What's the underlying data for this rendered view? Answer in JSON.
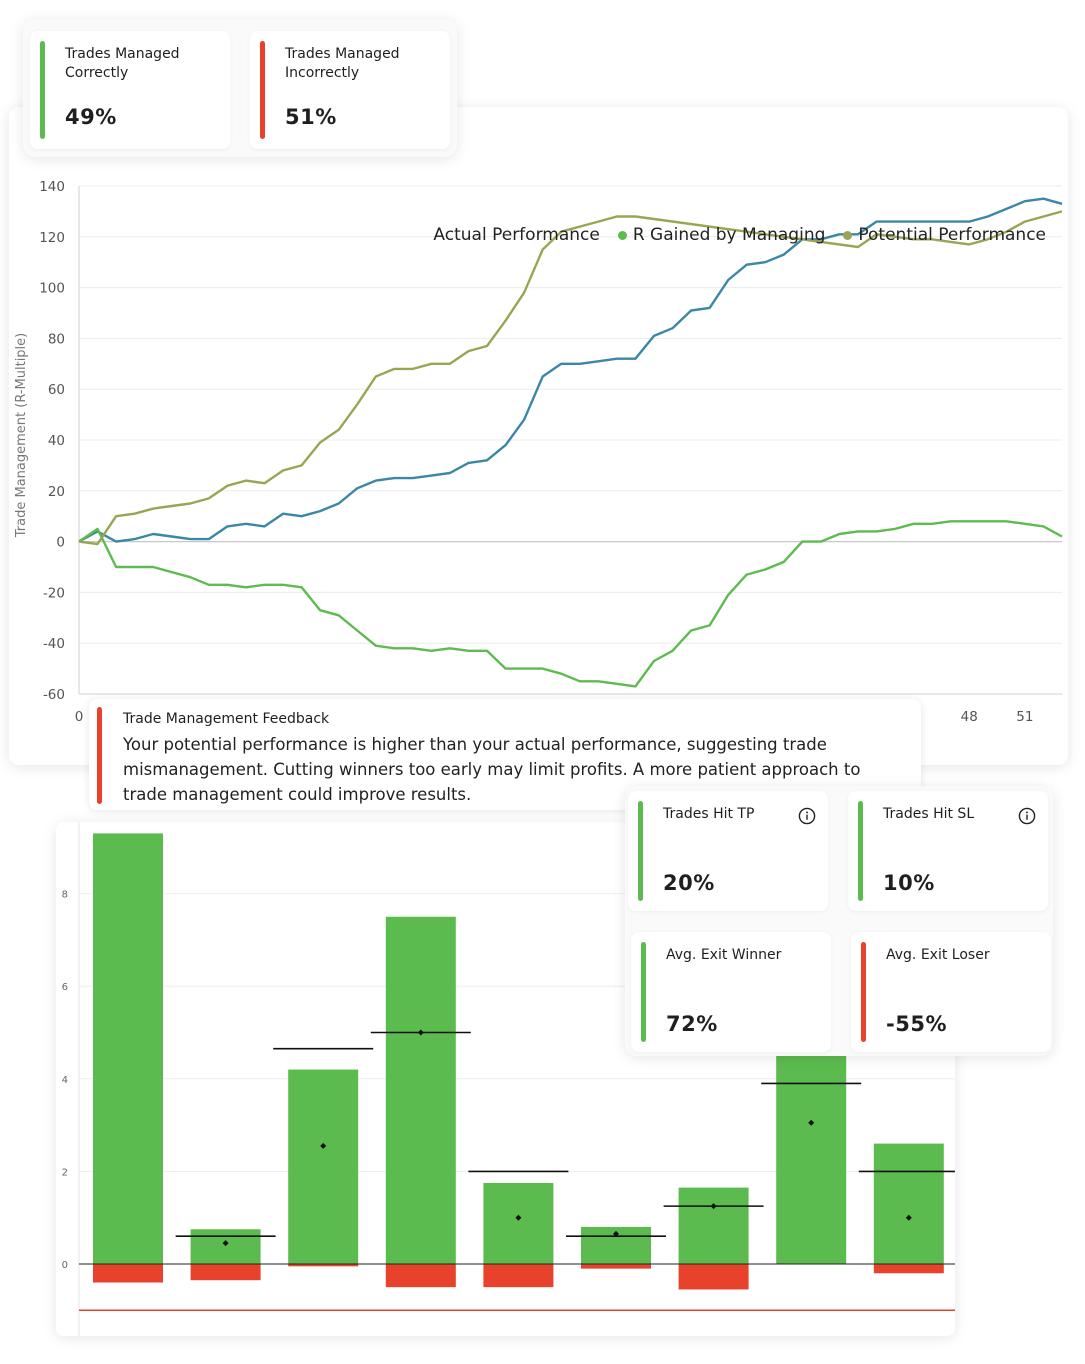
{
  "top_stats": [
    {
      "label": "Trades Managed Correctly",
      "value": "49%",
      "color": "#5cbb4e"
    },
    {
      "label": "Trades Managed Incorrectly",
      "value": "51%",
      "color": "#e8412c"
    }
  ],
  "legend": [
    {
      "label": "Actual Performance",
      "color": "#3b87a6"
    },
    {
      "label": "R Gained by Managing",
      "color": "#5dbb4f"
    },
    {
      "label": "Potential Performance",
      "color": "#9aa553"
    }
  ],
  "chart_data": [
    {
      "type": "line",
      "ylabel": "Trade Management (R-Multiple)",
      "ylim": [
        -60,
        140
      ],
      "yticks": [
        -60,
        -40,
        -20,
        0,
        20,
        40,
        60,
        80,
        100,
        120,
        140
      ],
      "xlim": [
        0,
        53
      ],
      "xtick_labels": [
        "0",
        "48",
        "51"
      ],
      "grid": true,
      "legend_position": "top-right",
      "series": [
        {
          "name": "Actual Performance",
          "color": "#3b87a6",
          "points": [
            [
              0,
              0
            ],
            [
              1,
              4
            ],
            [
              2,
              0
            ],
            [
              3,
              1
            ],
            [
              4,
              3
            ],
            [
              5,
              2
            ],
            [
              6,
              1
            ],
            [
              7,
              1
            ],
            [
              8,
              6
            ],
            [
              9,
              7
            ],
            [
              10,
              6
            ],
            [
              11,
              11
            ],
            [
              12,
              10
            ],
            [
              13,
              12
            ],
            [
              14,
              15
            ],
            [
              15,
              21
            ],
            [
              16,
              24
            ],
            [
              17,
              25
            ],
            [
              18,
              25
            ],
            [
              19,
              26
            ],
            [
              20,
              27
            ],
            [
              21,
              31
            ],
            [
              22,
              32
            ],
            [
              23,
              38
            ],
            [
              24,
              48
            ],
            [
              25,
              65
            ],
            [
              26,
              70
            ],
            [
              27,
              70
            ],
            [
              28,
              71
            ],
            [
              29,
              72
            ],
            [
              30,
              72
            ],
            [
              31,
              81
            ],
            [
              32,
              84
            ],
            [
              33,
              91
            ],
            [
              34,
              92
            ],
            [
              35,
              103
            ],
            [
              36,
              109
            ],
            [
              37,
              110
            ],
            [
              38,
              113
            ],
            [
              39,
              119
            ],
            [
              40,
              119
            ],
            [
              41,
              121
            ],
            [
              42,
              121
            ],
            [
              43,
              126
            ],
            [
              44,
              126
            ],
            [
              45,
              126
            ],
            [
              46,
              126
            ],
            [
              47,
              126
            ],
            [
              48,
              126
            ],
            [
              49,
              128
            ],
            [
              50,
              131
            ],
            [
              51,
              134
            ],
            [
              52,
              135
            ],
            [
              53,
              133
            ]
          ]
        },
        {
          "name": "R Gained by Managing",
          "color": "#5dbb4f",
          "points": [
            [
              0,
              0
            ],
            [
              1,
              5
            ],
            [
              2,
              -10
            ],
            [
              3,
              -10
            ],
            [
              4,
              -10
            ],
            [
              5,
              -12
            ],
            [
              6,
              -14
            ],
            [
              7,
              -17
            ],
            [
              8,
              -17
            ],
            [
              9,
              -18
            ],
            [
              10,
              -17
            ],
            [
              11,
              -17
            ],
            [
              12,
              -18
            ],
            [
              13,
              -27
            ],
            [
              14,
              -29
            ],
            [
              15,
              -35
            ],
            [
              16,
              -41
            ],
            [
              17,
              -42
            ],
            [
              18,
              -42
            ],
            [
              19,
              -43
            ],
            [
              20,
              -42
            ],
            [
              21,
              -43
            ],
            [
              22,
              -43
            ],
            [
              23,
              -50
            ],
            [
              24,
              -50
            ],
            [
              25,
              -50
            ],
            [
              26,
              -52
            ],
            [
              27,
              -55
            ],
            [
              28,
              -55
            ],
            [
              29,
              -56
            ],
            [
              30,
              -57
            ],
            [
              31,
              -47
            ],
            [
              32,
              -43
            ],
            [
              33,
              -35
            ],
            [
              34,
              -33
            ],
            [
              35,
              -21
            ],
            [
              36,
              -13
            ],
            [
              37,
              -11
            ],
            [
              38,
              -8
            ],
            [
              39,
              0
            ],
            [
              40,
              0
            ],
            [
              41,
              3
            ],
            [
              42,
              4
            ],
            [
              43,
              4
            ],
            [
              44,
              5
            ],
            [
              45,
              7
            ],
            [
              46,
              7
            ],
            [
              47,
              8
            ],
            [
              48,
              8
            ],
            [
              49,
              8
            ],
            [
              50,
              8
            ],
            [
              51,
              7
            ],
            [
              52,
              6
            ],
            [
              53,
              2
            ]
          ]
        },
        {
          "name": "Potential Performance",
          "color": "#9aa553",
          "points": [
            [
              0,
              0
            ],
            [
              1,
              -1
            ],
            [
              2,
              10
            ],
            [
              3,
              11
            ],
            [
              4,
              13
            ],
            [
              5,
              14
            ],
            [
              6,
              15
            ],
            [
              7,
              17
            ],
            [
              8,
              22
            ],
            [
              9,
              24
            ],
            [
              10,
              23
            ],
            [
              11,
              28
            ],
            [
              12,
              30
            ],
            [
              13,
              39
            ],
            [
              14,
              44
            ],
            [
              15,
              54
            ],
            [
              16,
              65
            ],
            [
              17,
              68
            ],
            [
              18,
              68
            ],
            [
              19,
              70
            ],
            [
              20,
              70
            ],
            [
              21,
              75
            ],
            [
              22,
              77
            ],
            [
              23,
              87
            ],
            [
              24,
              98
            ],
            [
              25,
              115
            ],
            [
              26,
              122
            ],
            [
              27,
              124
            ],
            [
              28,
              126
            ],
            [
              29,
              128
            ],
            [
              30,
              128
            ],
            [
              31,
              127
            ],
            [
              36,
              122
            ],
            [
              40,
              118
            ],
            [
              42,
              116
            ],
            [
              43,
              121
            ],
            [
              44,
              120
            ],
            [
              45,
              119
            ],
            [
              46,
              119
            ],
            [
              47,
              118
            ],
            [
              48,
              117
            ],
            [
              49,
              119
            ],
            [
              50,
              122
            ],
            [
              51,
              126
            ],
            [
              52,
              128
            ],
            [
              53,
              130
            ]
          ]
        }
      ]
    },
    {
      "type": "bar",
      "ylim": [
        -1.5,
        9.3
      ],
      "yticks": [
        0,
        2,
        4,
        6,
        8
      ],
      "grid": true,
      "bars": [
        {
          "positive": 9.3,
          "negative": -0.4,
          "marker": null,
          "line": null
        },
        {
          "positive": 0.75,
          "negative": -0.35,
          "marker": 0.45,
          "line": 0.6
        },
        {
          "positive": 4.2,
          "negative": -0.05,
          "marker": 2.55,
          "line": 4.65
        },
        {
          "positive": 7.5,
          "negative": -0.5,
          "marker": 5.0,
          "line": 5.0
        },
        {
          "positive": 1.75,
          "negative": -0.5,
          "marker": 1.0,
          "line": 2.0
        },
        {
          "positive": 0.8,
          "negative": -0.1,
          "marker": 0.65,
          "line": 0.6
        },
        {
          "positive": 1.65,
          "negative": -0.55,
          "marker": 1.25,
          "line": 1.25
        },
        {
          "positive": 4.5,
          "negative": 0,
          "marker": 3.05,
          "line": 3.9
        },
        {
          "positive": 2.6,
          "negative": -0.2,
          "marker": 1.0,
          "line": 2.0
        }
      ],
      "reference_line": -1.0
    }
  ],
  "feedback": {
    "title": "Trade Management Feedback",
    "text": "Your potential performance is higher than your actual performance, suggesting trade mismanagement. Cutting winners too early may limit profits. A more patient approach to trade management could improve results."
  },
  "stats_grid": [
    {
      "label": "Trades Hit TP",
      "value": "20%",
      "color": "#5cbb4e",
      "info": true
    },
    {
      "label": "Trades Hit SL",
      "value": "10%",
      "color": "#5cbb4e",
      "info": true
    },
    {
      "label": "Avg. Exit Winner",
      "value": "72%",
      "color": "#5cbb4e",
      "info": false
    },
    {
      "label": "Avg. Exit Loser",
      "value": "-55%",
      "color": "#e8412c",
      "info": false
    }
  ]
}
